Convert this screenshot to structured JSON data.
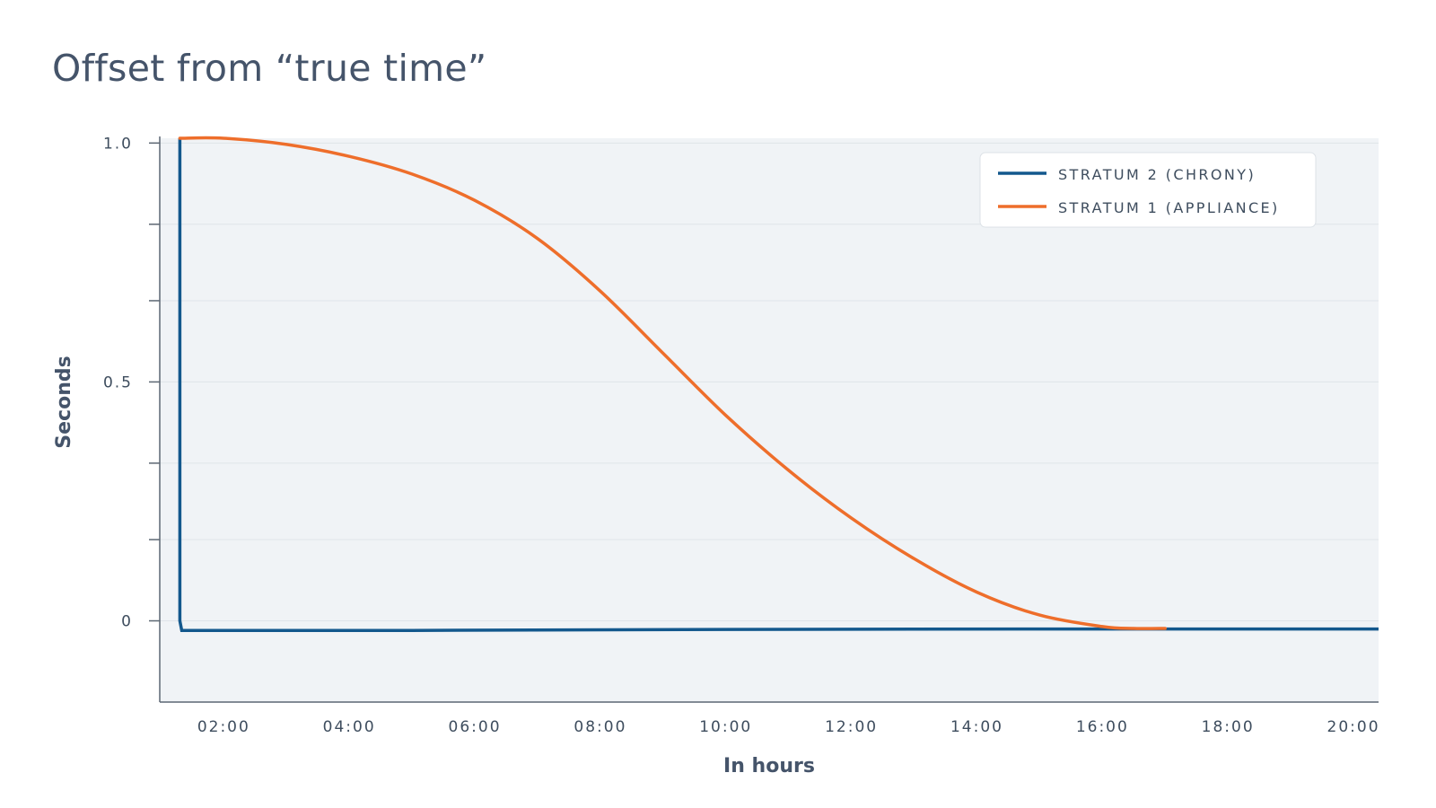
{
  "chart_data": {
    "type": "line",
    "title": "Offset from “true time”",
    "xlabel": "In hours",
    "ylabel": "Seconds",
    "x_ticks": [
      "02:00",
      "04:00",
      "06:00",
      "08:00",
      "10:00",
      "12:00",
      "14:00",
      "16:00",
      "18:00",
      "20:00"
    ],
    "y_ticks": [
      "1.0",
      "0.5",
      "0"
    ],
    "y_tick_values": [
      1.0,
      0.5,
      0
    ],
    "y_minor_ticks": [
      0.17,
      0.33,
      0.67,
      0.83
    ],
    "xlim": [
      0.98,
      20.4
    ],
    "ylim": [
      -0.17,
      1.01
    ],
    "grid": true,
    "legend_position": "top-right",
    "series": [
      {
        "name": "STRATUM 2 (CHRONY)",
        "color": "#13588d",
        "x": [
          1.3,
          1.3,
          1.33,
          5,
          10,
          15,
          20.4
        ],
        "y": [
          1.01,
          0.0,
          -0.02,
          -0.02,
          -0.018,
          -0.017,
          -0.017
        ]
      },
      {
        "name": "STRATUM 1 (APPLIANCE)",
        "color": "#ee6e2b",
        "x": [
          1.3,
          2.0,
          3.0,
          4.0,
          5.0,
          6.0,
          7.0,
          8.0,
          9.0,
          10.0,
          11.0,
          12.0,
          13.0,
          14.0,
          15.0,
          16.0,
          16.5,
          17.0
        ],
        "y": [
          1.01,
          1.01,
          0.997,
          0.972,
          0.935,
          0.88,
          0.8,
          0.69,
          0.56,
          0.43,
          0.315,
          0.215,
          0.13,
          0.06,
          0.012,
          -0.012,
          -0.016,
          -0.016
        ]
      }
    ]
  }
}
